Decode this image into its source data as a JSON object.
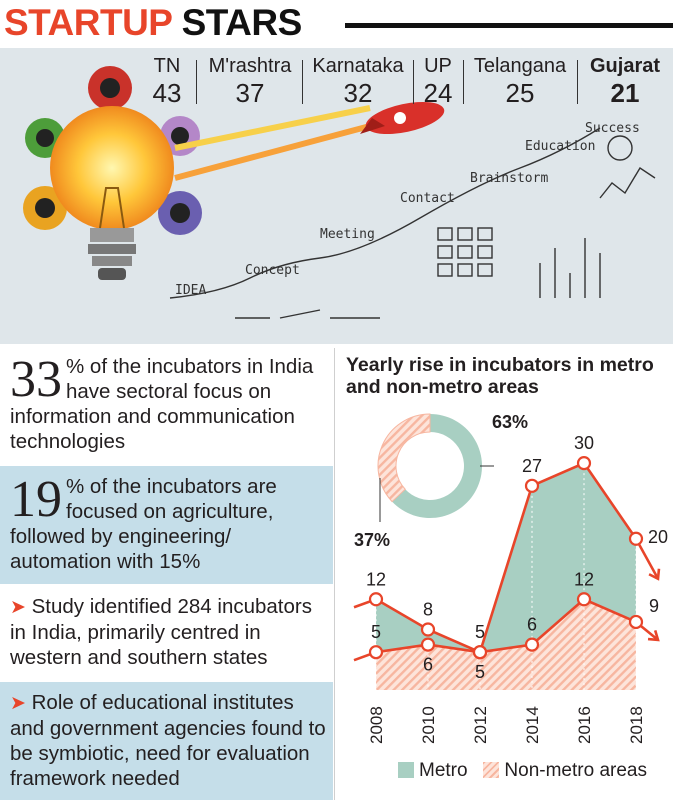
{
  "title": {
    "part1": "STARTUP",
    "part2": "STARS"
  },
  "states": [
    {
      "name": "TN",
      "value": "43"
    },
    {
      "name": "M'rashtra",
      "value": "37"
    },
    {
      "name": "Karnataka",
      "value": "32"
    },
    {
      "name": "UP",
      "value": "24"
    },
    {
      "name": "Telangana",
      "value": "25"
    },
    {
      "name": "Gujarat",
      "value": "21"
    }
  ],
  "illustration": {
    "labels": [
      "IDEA",
      "Concept",
      "Meeting",
      "Contact",
      "Brainstorm",
      "Education",
      "Success"
    ]
  },
  "facts": [
    {
      "big": "33",
      "text": "% of the incubators in India have sectoral focus on information and communication technologies"
    },
    {
      "big": "19",
      "text": "% of the incubators are focused on agriculture, followed by engineering/ automation with 15%"
    },
    {
      "arrow": "➤",
      "text": "Study identified 284 incubators in India, primarily centred in western and southern states"
    },
    {
      "arrow": "➤",
      "text": "Role of educational institutes and government agencies found to be symbiotic, need for evaluation framework needed"
    }
  ],
  "colors": {
    "accent": "#e8452a",
    "metro": "#a8cfc2",
    "nonmetro": "#f7b6a0",
    "panel": "#c5dee9"
  },
  "chart_data": [
    {
      "type": "pie",
      "title": "Yearly rise in incubators in metro and non-metro areas",
      "categories": [
        "Metro",
        "Non-metro areas"
      ],
      "values": [
        63,
        37
      ],
      "labels": [
        "63%",
        "37%"
      ]
    },
    {
      "type": "area",
      "title": "Yearly rise in incubators in metro and non-metro areas",
      "x": [
        "2008",
        "2010",
        "2012",
        "2014",
        "2016",
        "2018"
      ],
      "series": [
        {
          "name": "Metro",
          "values": [
            12,
            8,
            5,
            27,
            30,
            20
          ]
        },
        {
          "name": "Non-metro areas",
          "values": [
            5,
            6,
            5,
            6,
            12,
            9
          ]
        }
      ],
      "legend": [
        "Metro",
        "Non-metro areas"
      ],
      "ylim": [
        0,
        32
      ]
    }
  ]
}
